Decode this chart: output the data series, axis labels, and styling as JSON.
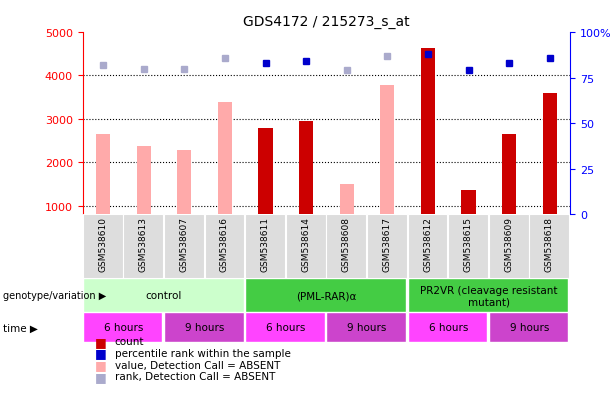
{
  "title": "GDS4172 / 215273_s_at",
  "samples": [
    "GSM538610",
    "GSM538613",
    "GSM538607",
    "GSM538616",
    "GSM538611",
    "GSM538614",
    "GSM538608",
    "GSM538617",
    "GSM538612",
    "GSM538615",
    "GSM538609",
    "GSM538618"
  ],
  "count_values": [
    null,
    null,
    null,
    null,
    2780,
    2960,
    null,
    null,
    4640,
    1370,
    2650,
    3600
  ],
  "absent_values": [
    2640,
    2380,
    2280,
    3400,
    null,
    null,
    1490,
    3780,
    null,
    null,
    null,
    null
  ],
  "rank_present": [
    null,
    null,
    null,
    null,
    83,
    84,
    null,
    null,
    88,
    79,
    83,
    86
  ],
  "rank_absent": [
    82,
    80,
    80,
    86,
    null,
    null,
    79,
    87,
    null,
    null,
    null,
    null
  ],
  "ylim_left": [
    800,
    5000
  ],
  "ylim_right": [
    0,
    100
  ],
  "yticks_left": [
    1000,
    2000,
    3000,
    4000,
    5000
  ],
  "yticks_right": [
    0,
    25,
    50,
    75,
    100
  ],
  "ytick_labels_right": [
    "0",
    "25",
    "50",
    "75",
    "100%"
  ],
  "color_count": "#cc0000",
  "color_absent_bar": "#ffaaaa",
  "color_rank_present": "#0000cc",
  "color_rank_absent": "#aaaacc",
  "grid_lines": [
    1000,
    2000,
    3000,
    4000
  ],
  "genotype_groups": [
    {
      "label": "control",
      "start": 0,
      "end": 4,
      "color": "#ccffcc"
    },
    {
      "label": "(PML-RAR)α",
      "start": 4,
      "end": 8,
      "color": "#44cc44"
    },
    {
      "label": "PR2VR (cleavage resistant\nmutant)",
      "start": 8,
      "end": 12,
      "color": "#44cc44"
    }
  ],
  "time_groups": [
    {
      "label": "6 hours",
      "start": 0,
      "end": 2,
      "color": "#ff44ff"
    },
    {
      "label": "9 hours",
      "start": 2,
      "end": 4,
      "color": "#cc44cc"
    },
    {
      "label": "6 hours",
      "start": 4,
      "end": 6,
      "color": "#ff44ff"
    },
    {
      "label": "9 hours",
      "start": 6,
      "end": 8,
      "color": "#cc44cc"
    },
    {
      "label": "6 hours",
      "start": 8,
      "end": 10,
      "color": "#ff44ff"
    },
    {
      "label": "9 hours",
      "start": 10,
      "end": 12,
      "color": "#cc44cc"
    }
  ],
  "legend_items": [
    {
      "color": "#cc0000",
      "label": "count"
    },
    {
      "color": "#0000cc",
      "label": "percentile rank within the sample"
    },
    {
      "color": "#ffaaaa",
      "label": "value, Detection Call = ABSENT"
    },
    {
      "color": "#aaaacc",
      "label": "rank, Detection Call = ABSENT"
    }
  ],
  "xlabel_row1": "genotype/variation",
  "xlabel_row2": "time",
  "bar_width": 0.35,
  "background_color": "#ffffff",
  "chart_bg": "#ffffff",
  "sample_bg": "#dddddd"
}
